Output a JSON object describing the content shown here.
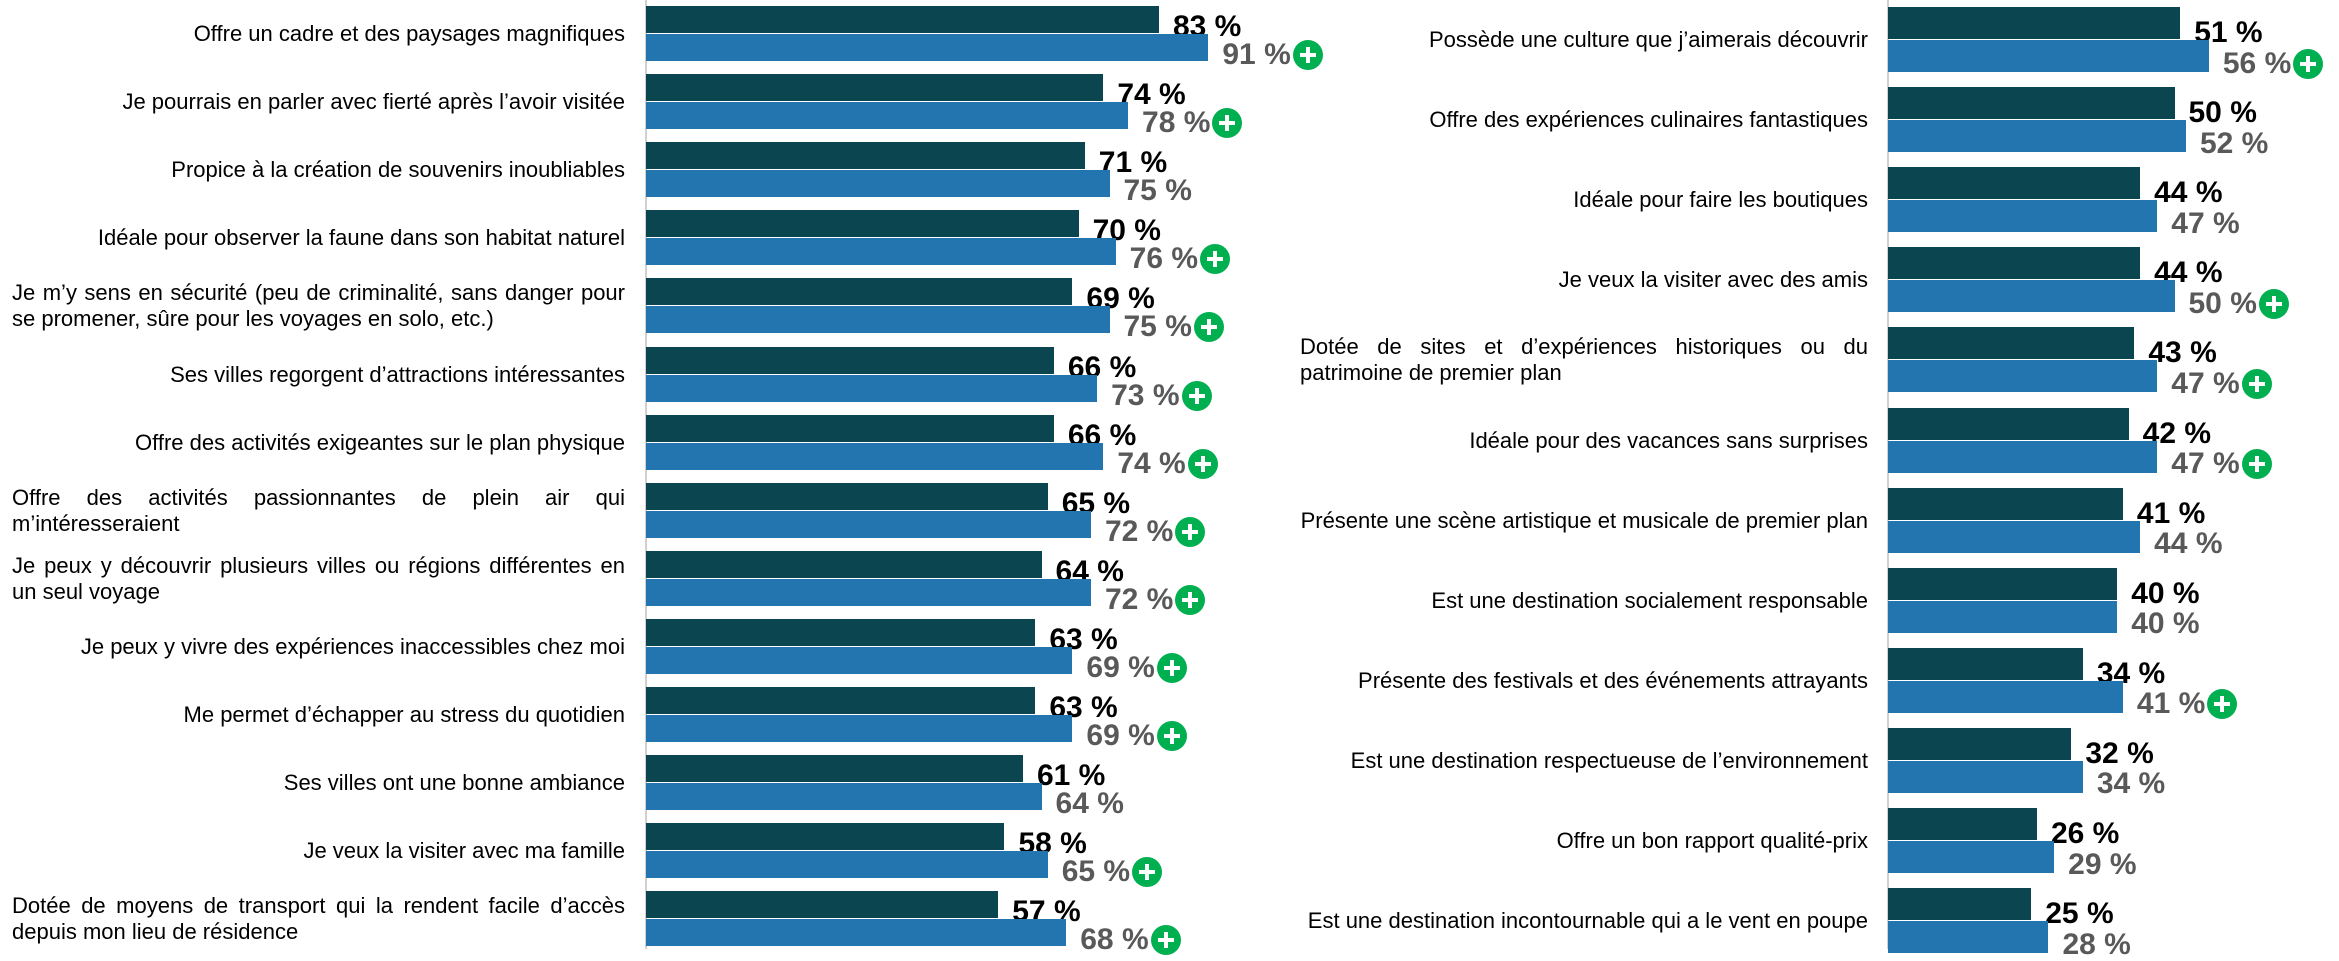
{
  "chart_data": [
    {
      "type": "bar",
      "orientation": "horizontal",
      "xlim": [
        0,
        100
      ],
      "categories": [
        "Offre un cadre et des paysages magnifiques",
        "Je pourrais en parler avec fierté après l’avoir visitée",
        "Propice à la création de souvenirs inoubliables",
        "Idéale pour observer la faune dans son habitat naturel",
        "Je m’y sens en sécurité (peu de criminalité, sans danger pour se promener, sûre pour les voyages en solo, etc.)",
        "Ses villes regorgent d’attractions intéressantes",
        "Offre des activités exigeantes sur le plan physique",
        "Offre des activités passionnantes de plein air qui m’intéresseraient",
        "Je peux y découvrir plusieurs villes ou régions différentes en un seul voyage",
        "Je peux y vivre des expériences inaccessibles chez moi",
        "Me permet d’échapper au stress du quotidien",
        "Ses villes ont une bonne ambiance",
        "Je veux la visiter avec ma famille",
        "Dotée de moyens de transport qui la rendent facile d’accès depuis mon lieu de résidence"
      ],
      "series": [
        {
          "color": "#0b4650",
          "label_color": "#000000",
          "values": [
            83,
            74,
            71,
            70,
            69,
            66,
            66,
            65,
            64,
            63,
            63,
            61,
            58,
            57
          ],
          "value_labels": [
            "83 %",
            "74 %",
            "71 %",
            "70 %",
            "69 %",
            "66 %",
            "66 %",
            "65 %",
            "64 %",
            "63 %",
            "63 %",
            "61 %",
            "58 %",
            "57 %"
          ]
        },
        {
          "color": "#2375b0",
          "label_color": "#595959",
          "marker_color": "#00b050",
          "values": [
            91,
            78,
            75,
            76,
            75,
            73,
            74,
            72,
            72,
            69,
            69,
            64,
            65,
            68
          ],
          "value_labels": [
            "91 %",
            "78 %",
            "75 %",
            "76 %",
            "75 %",
            "73 %",
            "74 %",
            "72 %",
            "72 %",
            "69 %",
            "69 %",
            "64 %",
            "65 %",
            "68 %"
          ],
          "significant": [
            true,
            true,
            false,
            true,
            true,
            true,
            true,
            true,
            true,
            true,
            true,
            false,
            true,
            true
          ]
        }
      ]
    },
    {
      "type": "bar",
      "orientation": "horizontal",
      "xlim": [
        0,
        100
      ],
      "categories": [
        "Possède une culture que j’aimerais découvrir",
        "Offre des expériences culinaires fantastiques",
        "Idéale pour faire les boutiques",
        "Je veux la visiter avec des amis",
        "Dotée de sites et d’expériences historiques ou du patrimoine de premier plan",
        "Idéale pour des vacances sans surprises",
        "Présente une scène artistique et musicale de premier plan",
        "Est une destination socialement responsable",
        "Présente des festivals et des événements attrayants",
        "Est une destination respectueuse de l’environnement",
        "Offre un bon rapport qualité-prix",
        "Est une destination incontournable qui a le vent en poupe"
      ],
      "series": [
        {
          "color": "#0b4650",
          "label_color": "#000000",
          "values": [
            51,
            50,
            44,
            44,
            43,
            42,
            41,
            40,
            34,
            32,
            26,
            25
          ],
          "value_labels": [
            "51 %",
            "50 %",
            "44 %",
            "44 %",
            "43 %",
            "42 %",
            "41 %",
            "40 %",
            "34 %",
            "32 %",
            "26 %",
            "25 %"
          ]
        },
        {
          "color": "#2375b0",
          "label_color": "#595959",
          "marker_color": "#00b050",
          "values": [
            56,
            52,
            47,
            50,
            47,
            47,
            44,
            40,
            41,
            34,
            29,
            28
          ],
          "value_labels": [
            "56 %",
            "52 %",
            "47 %",
            "50 %",
            "47 %",
            "47 %",
            "44 %",
            "40 %",
            "41 %",
            "34 %",
            "29 %",
            "28 %"
          ],
          "significant": [
            true,
            false,
            false,
            true,
            true,
            true,
            false,
            false,
            true,
            false,
            false,
            false
          ]
        }
      ]
    }
  ]
}
